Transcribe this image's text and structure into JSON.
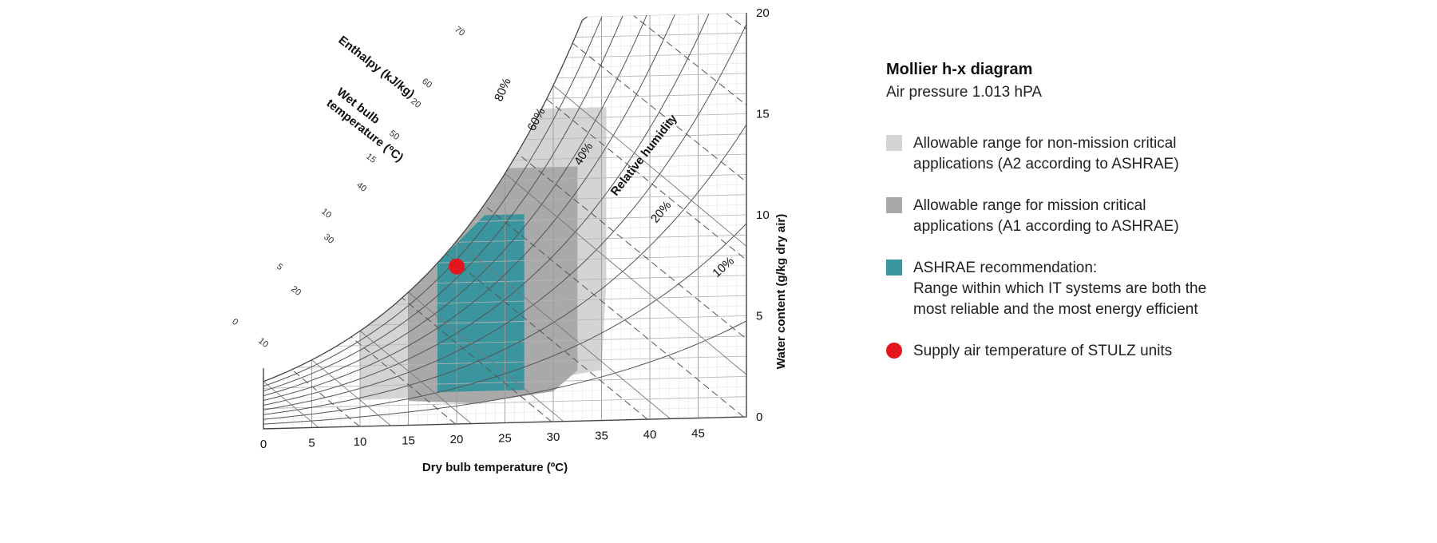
{
  "panel": {
    "title": "Mollier h-x diagram",
    "subtitle": "Air pressure 1.013 hPA",
    "legend": [
      {
        "lines": [
          "Allowable range for non-mission critical",
          "applications (A2 according to ASHRAE)"
        ],
        "color": "#d4d4d4",
        "shape": "square"
      },
      {
        "lines": [
          "Allowable range for mission critical",
          "applications (A1 according to ASHRAE)"
        ],
        "color": "#a9a9a9",
        "shape": "square"
      },
      {
        "lines": [
          "ASHRAE recommendation:",
          "Range within which IT systems are both the",
          "most reliable and the most energy efficient"
        ],
        "color": "#3a959e",
        "shape": "square"
      },
      {
        "lines": [
          "Supply air temperature of STULZ units"
        ],
        "color": "#e3161e",
        "shape": "circle"
      }
    ]
  },
  "diagram": {
    "xlabel": "Dry bulb temperature (ºC)",
    "ylabel": "Water content (g/kg dry air)",
    "enthalpy_label": "Enthalpy (kJ/kg)",
    "wetbulb_label_1": "Wet bulb",
    "wetbulb_label_2": "temperature (ºC)",
    "rh_label": "Relative humidity",
    "x_ticks": [
      "0",
      "5",
      "10",
      "15",
      "20",
      "25",
      "30",
      "35",
      "40",
      "45"
    ],
    "y_ticks": [
      "0",
      "5",
      "10",
      "15",
      "20"
    ],
    "enthalpy_ticks": [
      "10",
      "20",
      "30",
      "40",
      "50",
      "60",
      "70"
    ],
    "wetbulb_ticks": [
      "0",
      "5",
      "10",
      "15",
      "20"
    ],
    "rh_ticks": [
      "10%",
      "20%",
      "40%",
      "60%",
      "80%"
    ],
    "x_range": [
      0,
      50
    ],
    "y_range": [
      0,
      20
    ],
    "regions": {
      "a2_color": "#d4d4d4",
      "a1_color": "#a9a9a9",
      "recommended_color": "#3a959e"
    },
    "supply_point": {
      "temperature": 20,
      "water_content": 7.8,
      "color": "#e3161e"
    }
  }
}
